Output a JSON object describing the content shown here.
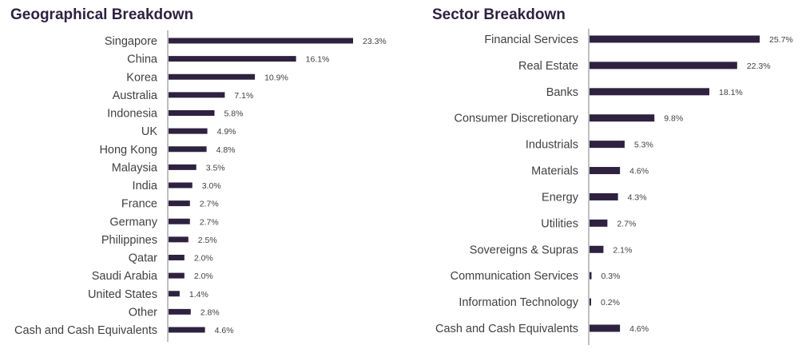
{
  "chart_data": [
    {
      "type": "bar",
      "orientation": "horizontal",
      "title": "Geographical Breakdown",
      "categories": [
        "Singapore",
        "China",
        "Korea",
        "Australia",
        "Indonesia",
        "UK",
        "Hong Kong",
        "Malaysia",
        "India",
        "France",
        "Germany",
        "Philippines",
        "Qatar",
        "Saudi Arabia",
        "United States",
        "Other",
        "Cash and Cash Equivalents"
      ],
      "values": [
        23.3,
        16.1,
        10.9,
        7.1,
        5.8,
        4.9,
        4.8,
        3.5,
        3.0,
        2.7,
        2.7,
        2.5,
        2.0,
        2.0,
        1.4,
        2.8,
        4.6
      ],
      "labels": [
        "23.3%",
        "16.1%",
        "10.9%",
        "7.1%",
        "5.8%",
        "4.9%",
        "4.8%",
        "3.5%",
        "3.0%",
        "2.7%",
        "2.7%",
        "2.5%",
        "2.0%",
        "2.0%",
        "1.4%",
        "2.8%",
        "4.6%"
      ],
      "xlim": [
        0,
        25
      ],
      "grid": false,
      "color": "#2e2240"
    },
    {
      "type": "bar",
      "orientation": "horizontal",
      "title": "Sector Breakdown",
      "categories": [
        "Financial Services",
        "Real Estate",
        "Banks",
        "Consumer Discretionary",
        "Industrials",
        "Materials",
        "Energy",
        "Utilities",
        "Sovereigns & Supras",
        "Communication Services",
        "Information Technology",
        "Cash and Cash Equivalents"
      ],
      "values": [
        25.7,
        22.3,
        18.1,
        9.8,
        5.3,
        4.6,
        4.3,
        2.7,
        2.1,
        0.3,
        0.2,
        4.6
      ],
      "labels": [
        "25.7%",
        "22.3%",
        "18.1%",
        "9.8%",
        "5.3%",
        "4.6%",
        "4.3%",
        "2.7%",
        "2.1%",
        "0.3%",
        "0.2%",
        "4.6%"
      ],
      "xlim": [
        0,
        27
      ],
      "grid": false,
      "color": "#2e2240"
    }
  ]
}
